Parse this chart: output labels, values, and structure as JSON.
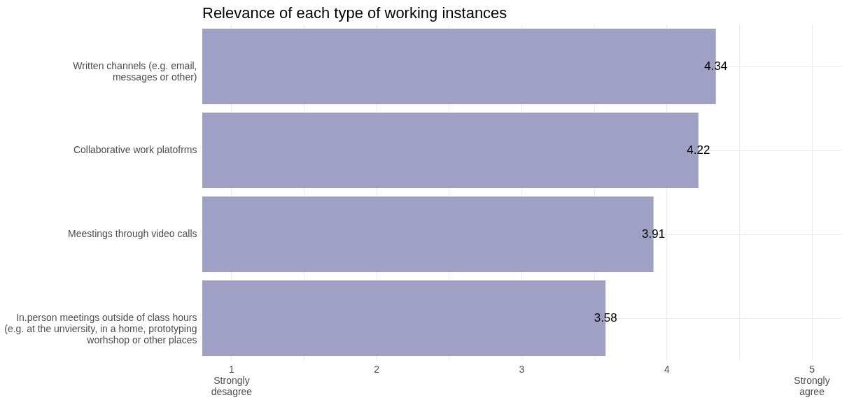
{
  "chart_data": {
    "type": "bar",
    "orientation": "horizontal",
    "title": "Relevance of each type of working instances",
    "categories": [
      "Written channels (e.g. email,\nmessages or other)",
      "Collaborative work platofrms",
      "Meestings through video calls",
      "In.person meetings outside of class hours\n(e.g. at the unviersity, in a home, prototyping\nworhshop or other places"
    ],
    "values": [
      4.34,
      4.22,
      3.91,
      3.58
    ],
    "color": "#a0a0c4",
    "data_labels": true,
    "xlim": [
      0.8,
      5.2
    ],
    "xticks": [
      {
        "value": 1,
        "label": "1\nStrongly\ndesagree"
      },
      {
        "value": 1.5,
        "label": null
      },
      2,
      {
        "value": 2.5,
        "label": null
      },
      3,
      {
        "value": 3.5,
        "label": null
      },
      4,
      {
        "value": 4.5,
        "label": null
      },
      {
        "value": 5,
        "label": "5\nStrongly\nagree"
      }
    ],
    "grid": true
  }
}
